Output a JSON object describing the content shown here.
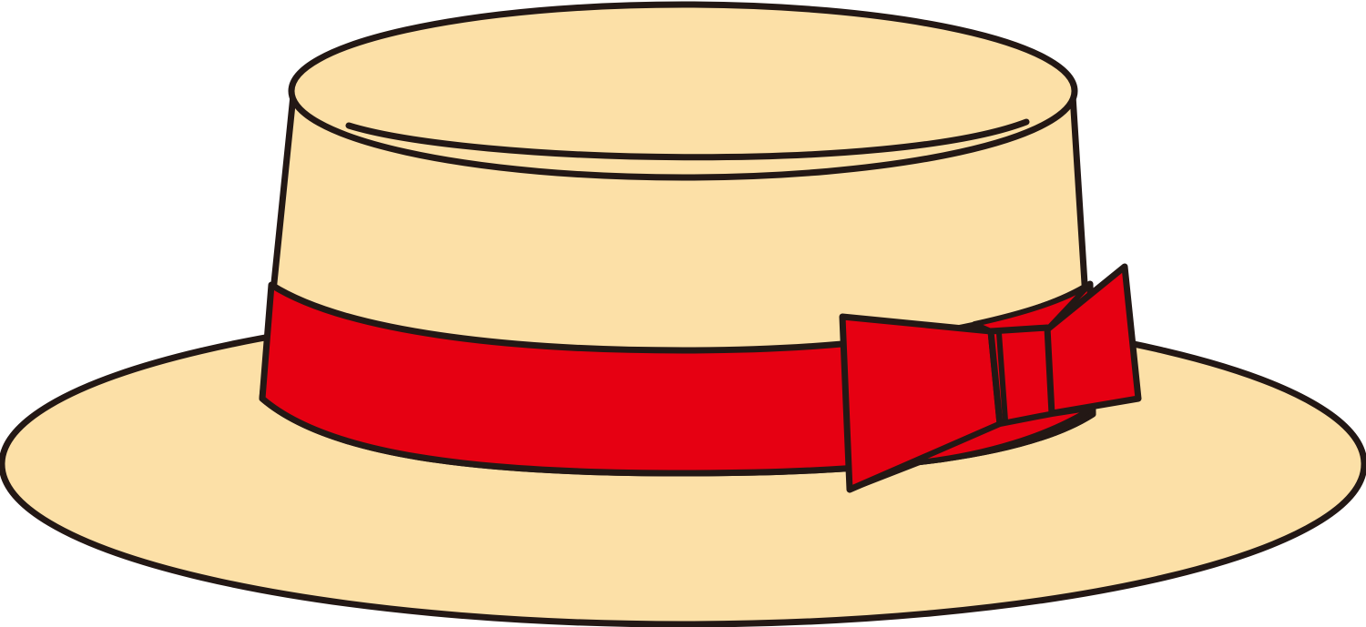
{
  "illustration": {
    "subject": "boater-hat-icon",
    "colors": {
      "straw": "#FCE0A7",
      "band": "#E60012",
      "outline": "#231815"
    }
  }
}
